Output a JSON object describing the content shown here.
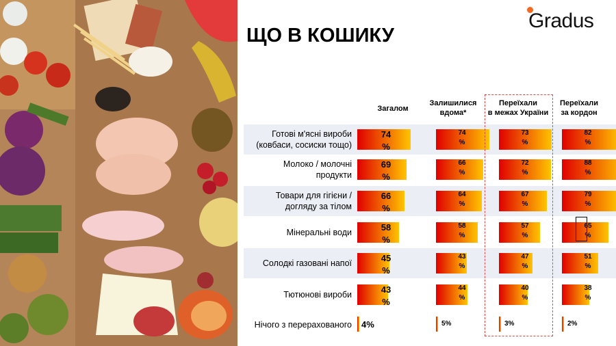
{
  "logo": "Gradus",
  "title": "ЩО В КОШИКУ",
  "colors": {
    "bar_start": "#e00000",
    "bar_end": "#ffc400",
    "row_bg": "#eceef6",
    "dash": "#e04848"
  },
  "chart_data": {
    "type": "bar",
    "orientation": "horizontal",
    "categories": [
      "Готові м'ясні вироби (ковбаси, сосиски тощо)",
      "Молоко / молочні продукти",
      "Товари для гігієни / догляду за тілом",
      "Мінеральні води",
      "Солодкі газовані напої",
      "Тютюнові вироби",
      "Нічого з перерахованого"
    ],
    "category_lines": [
      [
        "Готові м'ясні вироби",
        "(ковбаси, сосиски тощо)"
      ],
      [
        "Молоко / молочні",
        "продукти"
      ],
      [
        "Товари для гігієни /",
        "догляду за тілом"
      ],
      [
        "Мінеральні води"
      ],
      [
        "Солодкі газовані напої"
      ],
      [
        "Тютюнові вироби"
      ],
      [
        "Нічого з перерахованого"
      ]
    ],
    "unit": "%",
    "series": [
      {
        "name": "Загалом",
        "name_lines": [
          "Загалом"
        ],
        "values": [
          74,
          69,
          66,
          58,
          45,
          43,
          4
        ]
      },
      {
        "name": "Залишилися вдома*",
        "name_lines": [
          "Залишилися",
          "вдома*"
        ],
        "values": [
          74,
          66,
          64,
          58,
          43,
          44,
          5
        ]
      },
      {
        "name": "Переїхали в межах України",
        "name_lines": [
          "Переїхали",
          "в межах України"
        ],
        "values": [
          73,
          72,
          67,
          57,
          47,
          40,
          3
        ]
      },
      {
        "name": "Переїхали за кордон",
        "name_lines": [
          "Переїхали",
          "за кордон"
        ],
        "values": [
          82,
          88,
          79,
          65,
          51,
          38,
          2
        ]
      }
    ],
    "xlim": [
      0,
      100
    ],
    "grid": false,
    "legend": "none"
  }
}
